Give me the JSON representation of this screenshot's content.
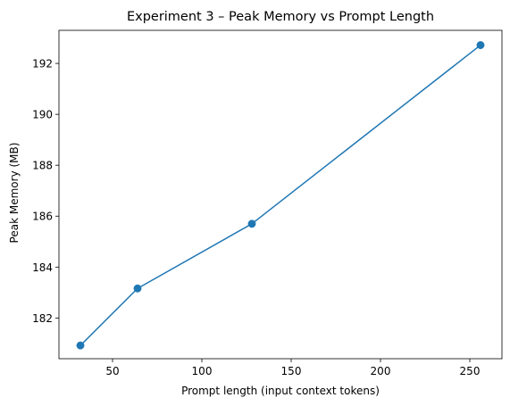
{
  "chart_data": {
    "type": "line",
    "title": "Experiment 3 – Peak Memory vs Prompt Length",
    "xlabel": "Prompt length (input context tokens)",
    "ylabel": "Peak Memory (MB)",
    "xlim": [
      20,
      268
    ],
    "ylim": [
      180.4,
      193.3
    ],
    "x_ticks": [
      50,
      100,
      150,
      200,
      250
    ],
    "y_ticks": [
      182,
      184,
      186,
      188,
      190,
      192
    ],
    "grid": false,
    "legend": "none",
    "series": [
      {
        "x": [
          32,
          64,
          128,
          256
        ],
        "y": [
          180.92,
          183.16,
          185.7,
          192.72
        ],
        "color": "#1f77b4",
        "marker": "circle"
      }
    ]
  }
}
